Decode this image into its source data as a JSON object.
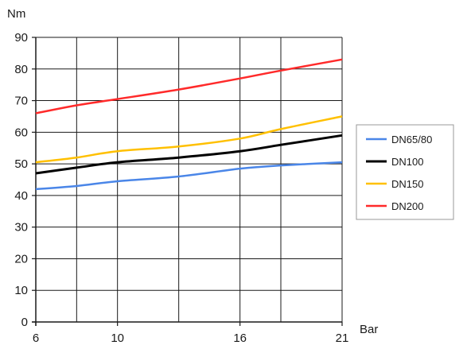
{
  "chart_data": {
    "type": "line",
    "title": "",
    "xlabel": "Bar",
    "ylabel": "Nm",
    "xlim": [
      6,
      21
    ],
    "ylim": [
      0,
      90
    ],
    "x_ticks": [
      6,
      10,
      16,
      21
    ],
    "x_tick_labels": [
      "6",
      "10",
      "16",
      "21"
    ],
    "x_gridlines": [
      6,
      8,
      10,
      13,
      16,
      18,
      21
    ],
    "y_ticks": [
      0,
      10,
      20,
      30,
      40,
      50,
      60,
      70,
      80,
      90
    ],
    "y_tick_labels": [
      "0",
      "10",
      "20",
      "30",
      "40",
      "50",
      "60",
      "70",
      "80",
      "90"
    ],
    "grid": true,
    "legend_position": "right",
    "series": [
      {
        "name": "DN65/80",
        "color": "#4a86e8",
        "points": [
          [
            6,
            42
          ],
          [
            8,
            43
          ],
          [
            10,
            44.5
          ],
          [
            13,
            46
          ],
          [
            16,
            48.5
          ],
          [
            18,
            49.5
          ],
          [
            21,
            50.5
          ]
        ]
      },
      {
        "name": "DN100",
        "color": "#000000",
        "points": [
          [
            6,
            47
          ],
          [
            8,
            48.8
          ],
          [
            10,
            50.5
          ],
          [
            13,
            52
          ],
          [
            16,
            54
          ],
          [
            18,
            56
          ],
          [
            21,
            59
          ]
        ]
      },
      {
        "name": "DN150",
        "color": "#ffc000",
        "points": [
          [
            6,
            50.5
          ],
          [
            8,
            52
          ],
          [
            10,
            54
          ],
          [
            13,
            55.5
          ],
          [
            16,
            58
          ],
          [
            18,
            61
          ],
          [
            21,
            65
          ]
        ]
      },
      {
        "name": "DN200",
        "color": "#ff2a2a",
        "points": [
          [
            6,
            66
          ],
          [
            8,
            68.5
          ],
          [
            10,
            70.5
          ],
          [
            13,
            73.5
          ],
          [
            16,
            77
          ],
          [
            18,
            79.5
          ],
          [
            21,
            83
          ]
        ]
      }
    ]
  }
}
